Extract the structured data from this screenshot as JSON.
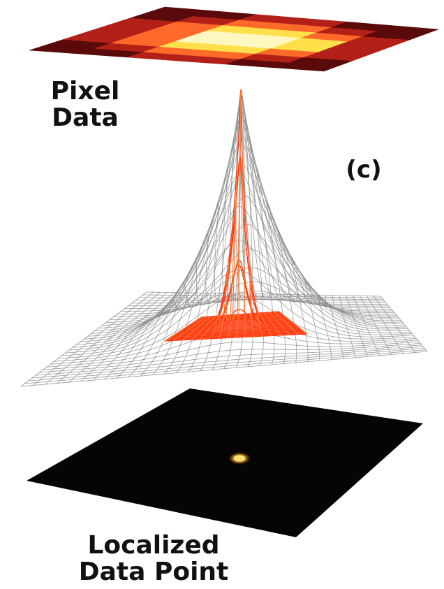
{
  "labels": {
    "pixel_data_line1": "Pixel",
    "pixel_data_line2": "Data",
    "panel_letter": "(c)",
    "localized_line1": "Localized",
    "localized_line2": "Data Point"
  },
  "colors": {
    "mesh_gray": "#8a8a8a",
    "mesh_red": "#ff3a10",
    "mesh_orange": "#ff7a30",
    "pixel_dark": "#5a0a0a",
    "pixel_mid": "#b32018",
    "pixel_light": "#ff6a2a",
    "pixel_yellow": "#ffe04a",
    "pixel_white": "#fff7c0",
    "detector_black": "#050505",
    "spot_core": "#ffd060",
    "spot_edge": "#c86a10"
  }
}
